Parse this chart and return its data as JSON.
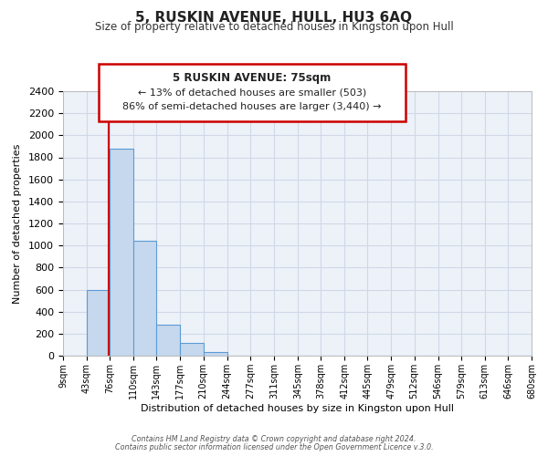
{
  "title": "5, RUSKIN AVENUE, HULL, HU3 6AQ",
  "subtitle": "Size of property relative to detached houses in Kingston upon Hull",
  "xlabel": "Distribution of detached houses by size in Kingston upon Hull",
  "ylabel": "Number of detached properties",
  "bar_values": [
    0,
    600,
    1880,
    1040,
    280,
    115,
    35,
    0,
    0,
    0,
    0,
    0,
    0,
    0,
    0,
    0,
    0,
    0,
    0,
    0
  ],
  "bar_labels": [
    "9sqm",
    "43sqm",
    "76sqm",
    "110sqm",
    "143sqm",
    "177sqm",
    "210sqm",
    "244sqm",
    "277sqm",
    "311sqm",
    "345sqm",
    "378sqm",
    "412sqm",
    "445sqm",
    "479sqm",
    "512sqm",
    "546sqm",
    "579sqm",
    "613sqm",
    "646sqm",
    "680sqm"
  ],
  "bar_color": "#c5d8ed",
  "bar_edge_color": "#5b9bd5",
  "bar_edge_width": 0.8,
  "red_line_x": 75,
  "ylim": [
    0,
    2400
  ],
  "yticks": [
    0,
    200,
    400,
    600,
    800,
    1000,
    1200,
    1400,
    1600,
    1800,
    2000,
    2200,
    2400
  ],
  "annotation_title": "5 RUSKIN AVENUE: 75sqm",
  "annotation_line1": "← 13% of detached houses are smaller (503)",
  "annotation_line2": "86% of semi-detached houses are larger (3,440) →",
  "annotation_box_edge": "#cc0000",
  "red_line_color": "#cc0000",
  "grid_color": "#d0d8e8",
  "bg_color": "#edf2f8",
  "footer1": "Contains HM Land Registry data © Crown copyright and database right 2024.",
  "footer2": "Contains public sector information licensed under the Open Government Licence v.3.0.",
  "bin_edges": [
    9,
    43,
    76,
    110,
    143,
    177,
    210,
    244,
    277,
    311,
    345,
    378,
    412,
    445,
    479,
    512,
    546,
    579,
    613,
    646,
    680
  ]
}
